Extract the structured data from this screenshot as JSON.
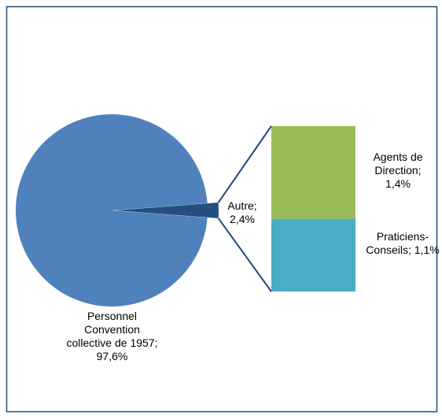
{
  "chart_data": {
    "type": "pie",
    "values": [
      97.6,
      2.4
    ],
    "value_labels": [
      "Personnel Convention collective de 1957; 97,6%",
      "Autre; 2,4%"
    ],
    "colors": [
      "#4f81bd",
      "#254f7f"
    ],
    "breakdown": {
      "of": 1,
      "values": [
        1.4,
        1.1
      ],
      "value_labels": [
        "Agents de Direction; 1,4%",
        "Praticiens-Conseils; 1,1%"
      ],
      "colors": [
        "#9bbb59",
        "#4bacc6"
      ]
    }
  }
}
